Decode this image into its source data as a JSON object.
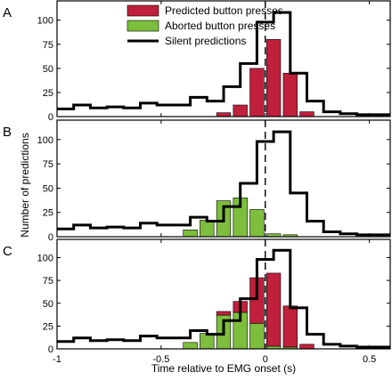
{
  "chart_data": {
    "type": "bar",
    "xlabel": "Time relative to EMG onset (s)",
    "ylabel": "Number of predictions",
    "xlim": [
      -1,
      0.6
    ],
    "ylim": [
      0,
      120
    ],
    "x_ticks": [
      -1,
      -0.5,
      0,
      0.5
    ],
    "x_tick_labels": [
      "-1",
      "-0.5",
      "0",
      "0.5"
    ],
    "y_ticks": [
      0,
      25,
      50,
      75,
      100
    ],
    "y_tick_labels": [
      "0",
      "25",
      "50",
      "75",
      "100"
    ],
    "bin_width": 0.08,
    "bin_centers": [
      -0.92,
      -0.84,
      -0.76,
      -0.68,
      -0.6,
      -0.52,
      -0.44,
      -0.36,
      -0.28,
      -0.2,
      -0.12,
      -0.04,
      0.04,
      0.12,
      0.2,
      0.28,
      0.36,
      0.44,
      0.52
    ],
    "event_line_x": 0,
    "colors": {
      "predicted": "#c0203c",
      "aborted": "#7dbe3c",
      "silent": "#000000",
      "event_line": "#000000"
    },
    "legend": {
      "placement": "top-center",
      "entries": [
        "Predicted button presses",
        "Aborted button presses",
        "Silent predictions"
      ]
    },
    "silent_outline": {
      "bin_edges": [
        -1.0,
        -0.92,
        -0.84,
        -0.76,
        -0.68,
        -0.6,
        -0.52,
        -0.44,
        -0.36,
        -0.28,
        -0.2,
        -0.12,
        -0.04,
        0.04,
        0.12,
        0.2,
        0.28,
        0.36,
        0.44,
        0.52,
        0.6
      ],
      "values": [
        8,
        12,
        9,
        10,
        9,
        14,
        12,
        12,
        20,
        16,
        31,
        55,
        98,
        108,
        45,
        16,
        5,
        3,
        2,
        2
      ]
    },
    "panels": [
      {
        "label": "A",
        "show_legend": true,
        "series": [
          {
            "name": "Predicted button presses",
            "color_key": "predicted",
            "stack": "top",
            "values": [
              0,
              0,
              0,
              0,
              0,
              0,
              0,
              0,
              0,
              4,
              12,
              50,
              80,
              45,
              5,
              0,
              0,
              0,
              0
            ]
          }
        ]
      },
      {
        "label": "B",
        "show_legend": false,
        "series": [
          {
            "name": "Aborted button presses",
            "color_key": "aborted",
            "stack": "bottom",
            "values": [
              0,
              0,
              0,
              0,
              0,
              0,
              0,
              7,
              17,
              37,
              40,
              28,
              3,
              2,
              0,
              0,
              0,
              0,
              0
            ]
          }
        ]
      },
      {
        "label": "C",
        "show_legend": false,
        "series": [
          {
            "name": "Aborted button presses",
            "color_key": "aborted",
            "stack": "bottom",
            "values": [
              0,
              0,
              0,
              0,
              0,
              0,
              0,
              7,
              17,
              37,
              40,
              28,
              3,
              2,
              0,
              0,
              0,
              0,
              0
            ]
          },
          {
            "name": "Predicted button presses",
            "color_key": "predicted",
            "stack": "top",
            "values": [
              0,
              0,
              0,
              0,
              0,
              0,
              0,
              0,
              0,
              4,
              12,
              50,
              80,
              45,
              5,
              0,
              0,
              0,
              0
            ]
          }
        ]
      }
    ]
  }
}
